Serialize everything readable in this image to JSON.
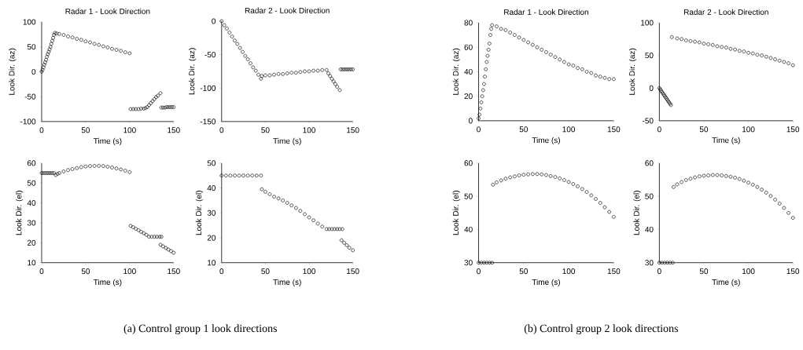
{
  "chart_data": [
    {
      "type": "scatter",
      "title": "Radar 1 - Look Direction",
      "xlabel": "Time (s)",
      "ylabel": "Look Dir. (az)",
      "color": "#000000",
      "marker": "circle",
      "xlim": [
        0,
        150
      ],
      "xticks": [
        0,
        50,
        100,
        150
      ],
      "ylim": [
        -100,
        100
      ],
      "yticks": [
        -100,
        -50,
        0,
        50,
        100
      ],
      "x": [
        0,
        1,
        2,
        3,
        4,
        5,
        6,
        7,
        8,
        9,
        10,
        11,
        12,
        13,
        14,
        15,
        17,
        20,
        25,
        30,
        35,
        40,
        45,
        50,
        55,
        60,
        65,
        70,
        75,
        80,
        85,
        90,
        95,
        100,
        101,
        104,
        107,
        110,
        113,
        116,
        118,
        120,
        122,
        124,
        126,
        128,
        130,
        132,
        135,
        136,
        138,
        140,
        142,
        144,
        146,
        148,
        150
      ],
      "values": [
        0,
        4,
        9,
        14,
        19,
        24,
        30,
        35,
        40,
        45,
        50,
        56,
        62,
        68,
        74,
        78,
        77,
        76,
        74,
        71,
        69,
        66,
        64,
        61,
        59,
        56,
        54,
        51,
        49,
        46,
        44,
        42,
        39,
        37,
        -75,
        -75,
        -75,
        -75,
        -74,
        -74,
        -73,
        -71,
        -67,
        -63,
        -59,
        -55,
        -51,
        -48,
        -43,
        -72,
        -72,
        -72,
        -71,
        -71,
        -71,
        -71,
        -71
      ]
    },
    {
      "type": "scatter",
      "title": "Radar 2 - Look Direction",
      "xlabel": "Time (s)",
      "ylabel": "Look Dir. (az)",
      "color": "#000000",
      "marker": "circle",
      "xlim": [
        0,
        150
      ],
      "xticks": [
        0,
        50,
        100,
        150
      ],
      "ylim": [
        -150,
        0
      ],
      "yticks": [
        -150,
        -100,
        -50,
        0
      ],
      "x": [
        0,
        3,
        6,
        9,
        12,
        15,
        18,
        21,
        24,
        27,
        30,
        33,
        36,
        39,
        42,
        45,
        46,
        50,
        55,
        60,
        65,
        70,
        75,
        80,
        85,
        90,
        95,
        100,
        105,
        110,
        115,
        120,
        122,
        124,
        126,
        128,
        130,
        132,
        135,
        136,
        138,
        140,
        142,
        144,
        146,
        148,
        150
      ],
      "values": [
        0,
        -6,
        -11,
        -17,
        -23,
        -29,
        -34,
        -40,
        -46,
        -52,
        -57,
        -63,
        -69,
        -74,
        -80,
        -86,
        -82,
        -81,
        -81,
        -80,
        -79,
        -79,
        -78,
        -77,
        -77,
        -76,
        -75,
        -75,
        -74,
        -74,
        -73,
        -73,
        -78,
        -82,
        -86,
        -90,
        -94,
        -98,
        -103,
        -72,
        -72,
        -72,
        -72,
        -72,
        -72,
        -72,
        -72
      ]
    },
    {
      "type": "scatter",
      "xlabel": "Time (s)",
      "ylabel": "Look Dir. (el)",
      "color": "#000000",
      "marker": "circle",
      "xlim": [
        0,
        150
      ],
      "xticks": [
        0,
        50,
        100,
        150
      ],
      "ylim": [
        10,
        60
      ],
      "yticks": [
        10,
        20,
        30,
        40,
        50,
        60
      ],
      "x": [
        0,
        2,
        4,
        6,
        8,
        10,
        12,
        14,
        16,
        18,
        20,
        25,
        30,
        35,
        40,
        45,
        50,
        55,
        60,
        65,
        70,
        75,
        80,
        85,
        90,
        95,
        100,
        101,
        104,
        107,
        110,
        113,
        116,
        119,
        122,
        125,
        128,
        131,
        134,
        136,
        135,
        138,
        141,
        144,
        147,
        150
      ],
      "values": [
        55,
        55,
        55,
        55,
        55,
        55,
        55,
        55,
        54,
        54.6,
        55,
        55.8,
        56.5,
        57,
        57.5,
        58,
        58.3,
        58.5,
        58.6,
        58.6,
        58.5,
        58.2,
        57.8,
        57.3,
        56.8,
        56.2,
        55.5,
        28.5,
        27.8,
        27,
        26.3,
        25.5,
        24.8,
        24,
        23,
        23,
        23,
        23,
        23,
        23,
        19,
        18.2,
        17.4,
        16.6,
        15.8,
        15
      ]
    },
    {
      "type": "scatter",
      "xlabel": "Time (s)",
      "ylabel": "Look Dir. (el)",
      "color": "#000000",
      "marker": "circle",
      "xlim": [
        0,
        150
      ],
      "xticks": [
        0,
        50,
        100,
        150
      ],
      "ylim": [
        10,
        50
      ],
      "yticks": [
        10,
        20,
        30,
        40,
        50
      ],
      "annotations": [
        "(a) Control group 1 look directions"
      ],
      "x": [
        0,
        5,
        10,
        15,
        20,
        25,
        30,
        35,
        40,
        45,
        46,
        50,
        55,
        60,
        65,
        70,
        75,
        80,
        85,
        90,
        95,
        100,
        105,
        110,
        115,
        120,
        123,
        126,
        129,
        132,
        135,
        138,
        137,
        140,
        143,
        146,
        150
      ],
      "values": [
        45,
        45,
        45,
        45,
        45,
        45,
        45,
        45,
        45,
        45,
        39.5,
        38.5,
        37.5,
        36.5,
        35.8,
        35,
        34,
        33,
        32,
        30.8,
        29.5,
        28.2,
        27,
        25.7,
        24.5,
        23.5,
        23.5,
        23.5,
        23.5,
        23.5,
        23.5,
        23.5,
        19,
        18,
        17,
        16,
        15
      ]
    },
    {
      "type": "scatter",
      "title": "Radar 1 - Look Direction",
      "xlabel": "Time (s)",
      "ylabel": "Look Dir. (az)",
      "color": "#000000",
      "marker": "circle",
      "xlim": [
        0,
        150
      ],
      "xticks": [
        0,
        50,
        100,
        150
      ],
      "ylim": [
        0,
        80
      ],
      "yticks": [
        0,
        20,
        40,
        60,
        80
      ],
      "x": [
        0,
        1,
        2,
        3,
        4,
        5,
        6,
        7,
        8,
        9,
        10,
        11,
        12,
        13,
        14,
        15,
        20,
        25,
        30,
        35,
        40,
        45,
        50,
        55,
        60,
        65,
        70,
        75,
        80,
        85,
        90,
        95,
        100,
        105,
        110,
        115,
        120,
        125,
        130,
        135,
        140,
        145,
        150
      ],
      "values": [
        2,
        5,
        10,
        15,
        20,
        25,
        30,
        36,
        42,
        48,
        53,
        58,
        63,
        70,
        75,
        78,
        77,
        75,
        74,
        72,
        70,
        68,
        66,
        64,
        62,
        60,
        58,
        56,
        54,
        52,
        50,
        48,
        46,
        45,
        43,
        42,
        40,
        39,
        37,
        36,
        35,
        34,
        34
      ]
    },
    {
      "type": "scatter",
      "title": "Radar 2 - Look Direction",
      "xlabel": "Time (s)",
      "ylabel": "Look Dir. (az)",
      "color": "#000000",
      "marker": "circle",
      "xlim": [
        0,
        150
      ],
      "xticks": [
        0,
        50,
        100,
        150
      ],
      "ylim": [
        -50,
        100
      ],
      "yticks": [
        -50,
        0,
        50,
        100
      ],
      "x": [
        0,
        1,
        2,
        3,
        4,
        5,
        6,
        7,
        8,
        9,
        10,
        11,
        12,
        13,
        14,
        20,
        25,
        30,
        35,
        40,
        45,
        50,
        55,
        60,
        65,
        70,
        75,
        80,
        85,
        90,
        95,
        100,
        105,
        110,
        115,
        120,
        125,
        130,
        135,
        140,
        145,
        150
      ],
      "values": [
        0,
        -2,
        -4,
        -6,
        -8,
        -10,
        -12,
        -14,
        -16,
        -18,
        -20,
        -22,
        -24,
        -26,
        78,
        76,
        75,
        73,
        72,
        71,
        70,
        68,
        67,
        66,
        64,
        63,
        62,
        60,
        59,
        57,
        56,
        54,
        53,
        51,
        50,
        48,
        46,
        44,
        42,
        40,
        38,
        35
      ]
    },
    {
      "type": "scatter",
      "xlabel": "Time (s)",
      "ylabel": "Look Dir. (el)",
      "color": "#000000",
      "marker": "circle",
      "xlim": [
        0,
        150
      ],
      "xticks": [
        0,
        50,
        100,
        150
      ],
      "ylim": [
        30,
        60
      ],
      "yticks": [
        30,
        40,
        50,
        60
      ],
      "x": [
        0,
        3,
        6,
        9,
        12,
        15,
        16,
        20,
        25,
        30,
        35,
        40,
        45,
        50,
        55,
        60,
        65,
        70,
        75,
        80,
        85,
        90,
        95,
        100,
        105,
        110,
        115,
        120,
        125,
        130,
        135,
        140,
        145,
        150
      ],
      "values": [
        30,
        30,
        30,
        30,
        30,
        30,
        53.5,
        54.2,
        54.8,
        55.3,
        55.7,
        56,
        56.3,
        56.5,
        56.6,
        56.7,
        56.7,
        56.6,
        56.4,
        56.1,
        55.8,
        55.4,
        54.9,
        54.3,
        53.7,
        53,
        52.2,
        51.3,
        50.3,
        49.2,
        48,
        46.7,
        45.3,
        43.8
      ]
    },
    {
      "type": "scatter",
      "xlabel": "Time (s)",
      "ylabel": "Look Dir. (el)",
      "color": "#000000",
      "marker": "circle",
      "xlim": [
        0,
        150
      ],
      "xticks": [
        0,
        50,
        100,
        150
      ],
      "ylim": [
        30,
        60
      ],
      "yticks": [
        30,
        40,
        50,
        60
      ],
      "annotations": [
        "(b) Control group 2 look directions"
      ],
      "x": [
        0,
        3,
        6,
        9,
        12,
        15,
        16,
        20,
        25,
        30,
        35,
        40,
        45,
        50,
        55,
        60,
        65,
        70,
        75,
        80,
        85,
        90,
        95,
        100,
        105,
        110,
        115,
        120,
        125,
        130,
        135,
        140,
        145,
        150
      ],
      "values": [
        30,
        30,
        30,
        30,
        30,
        30,
        52.8,
        53.6,
        54.3,
        54.9,
        55.3,
        55.7,
        56,
        56.2,
        56.3,
        56.4,
        56.4,
        56.3,
        56.1,
        55.9,
        55.6,
        55.2,
        54.7,
        54.1,
        53.5,
        52.8,
        52,
        51.1,
        50.1,
        49,
        47.8,
        46.5,
        45,
        43.5
      ]
    }
  ]
}
